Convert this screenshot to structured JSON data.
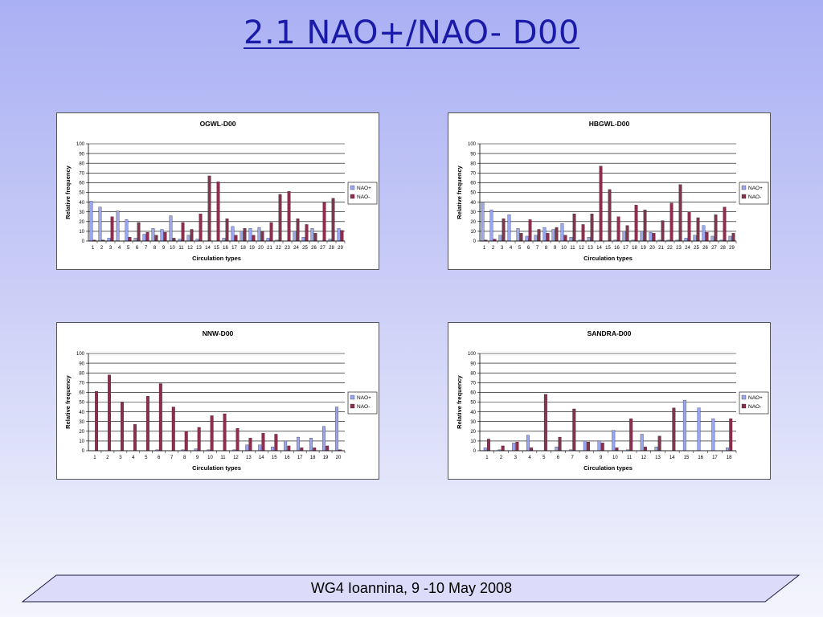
{
  "slide": {
    "title": "2.1 NAO+/NAO-   D00",
    "footer": "WG4 Ioannina, 9 -10 May 2008"
  },
  "colors": {
    "nao_plus": "#9aa6ee",
    "nao_minus": "#8b2f4e",
    "footer_fill": "#dcdcfa",
    "gridline": "#000000"
  },
  "chart_data": [
    {
      "type": "bar",
      "title": "OGWL-D00",
      "xlabel": "Circulation types",
      "ylabel": "Relative frequency",
      "ylim": [
        0,
        100
      ],
      "yticks": [
        0,
        10,
        20,
        30,
        40,
        50,
        60,
        70,
        80,
        90,
        100
      ],
      "grid": true,
      "legend": "right",
      "categories": [
        "1",
        "2",
        "3",
        "4",
        "5",
        "6",
        "7",
        "8",
        "9",
        "10",
        "11",
        "12",
        "13",
        "14",
        "15",
        "16",
        "17",
        "18",
        "19",
        "20",
        "21",
        "22",
        "23",
        "24",
        "25",
        "26",
        "27",
        "28",
        "29"
      ],
      "series": [
        {
          "name": "NAO+",
          "values": [
            41,
            35,
            3,
            31,
            22,
            3,
            7,
            13,
            12,
            26,
            2,
            6,
            2,
            0,
            0,
            3,
            15,
            10,
            13,
            14,
            3,
            1,
            0,
            10,
            4,
            13,
            0,
            2,
            13
          ]
        },
        {
          "name": "NAO-",
          "values": [
            1,
            1,
            25,
            0,
            4,
            19,
            9,
            6,
            9,
            3,
            19,
            12,
            28,
            67,
            61,
            23,
            6,
            13,
            6,
            10,
            19,
            48,
            51,
            23,
            17,
            8,
            40,
            44,
            11
          ]
        }
      ]
    },
    {
      "type": "bar",
      "title": "HBGWL-D00",
      "xlabel": "Circulation types",
      "ylabel": "Relative frequency",
      "ylim": [
        0,
        100
      ],
      "yticks": [
        0,
        10,
        20,
        30,
        40,
        50,
        60,
        70,
        80,
        90,
        100
      ],
      "grid": true,
      "legend": "right",
      "categories": [
        "1",
        "2",
        "3",
        "4",
        "5",
        "6",
        "7",
        "8",
        "9",
        "10",
        "11",
        "12",
        "13",
        "14",
        "15",
        "16",
        "17",
        "18",
        "19",
        "20",
        "21",
        "22",
        "23",
        "24",
        "25",
        "26",
        "27",
        "28",
        "29"
      ],
      "series": [
        {
          "name": "NAO+",
          "values": [
            40,
            32,
            6,
            27,
            13,
            5,
            6,
            14,
            12,
            18,
            4,
            1,
            4,
            0,
            0,
            1,
            10,
            1,
            10,
            9,
            1,
            1,
            1,
            3,
            6,
            16,
            5,
            1,
            5
          ]
        },
        {
          "name": "NAO-",
          "values": [
            1,
            2,
            23,
            0,
            8,
            22,
            12,
            8,
            14,
            6,
            28,
            17,
            28,
            77,
            53,
            25,
            16,
            37,
            32,
            8,
            21,
            39,
            58,
            30,
            24,
            9,
            27,
            35,
            8
          ]
        }
      ]
    },
    {
      "type": "bar",
      "title": "NNW-D00",
      "xlabel": "Circulation types",
      "ylabel": "Relative frequency",
      "ylim": [
        0,
        100
      ],
      "yticks": [
        0,
        10,
        20,
        30,
        40,
        50,
        60,
        70,
        80,
        90,
        100
      ],
      "grid": true,
      "legend": "right",
      "categories": [
        "1",
        "2",
        "3",
        "4",
        "5",
        "6",
        "7",
        "8",
        "9",
        "10",
        "11",
        "12",
        "13",
        "14",
        "15",
        "16",
        "17",
        "18",
        "19",
        "20"
      ],
      "series": [
        {
          "name": "NAO+",
          "values": [
            0,
            0,
            0,
            0,
            0,
            1,
            0,
            1,
            2,
            1,
            0,
            1,
            6,
            6,
            4,
            10,
            14,
            13,
            25,
            45
          ]
        },
        {
          "name": "NAO-",
          "values": [
            61,
            78,
            50,
            27,
            56,
            69,
            45,
            20,
            24,
            36,
            38,
            23,
            13,
            18,
            17,
            5,
            3,
            3,
            5,
            1
          ]
        }
      ]
    },
    {
      "type": "bar",
      "title": "SANDRA-D00",
      "xlabel": "Circulation types",
      "ylabel": "Relative frequency",
      "ylim": [
        0,
        100
      ],
      "yticks": [
        0,
        10,
        20,
        30,
        40,
        50,
        60,
        70,
        80,
        90,
        100
      ],
      "grid": true,
      "legend": "right",
      "categories": [
        "1",
        "2",
        "3",
        "4",
        "5",
        "6",
        "7",
        "8",
        "9",
        "10",
        "11",
        "12",
        "13",
        "14",
        "15",
        "16",
        "17",
        "18"
      ],
      "series": [
        {
          "name": "NAO+",
          "values": [
            3,
            1,
            8,
            16,
            0,
            4,
            1,
            10,
            10,
            21,
            1,
            17,
            4,
            0,
            52,
            44,
            33,
            3
          ]
        },
        {
          "name": "NAO-",
          "values": [
            12,
            5,
            9,
            3,
            58,
            14,
            43,
            9,
            8,
            3,
            33,
            4,
            15,
            44,
            0,
            0,
            0,
            33
          ]
        }
      ]
    }
  ]
}
